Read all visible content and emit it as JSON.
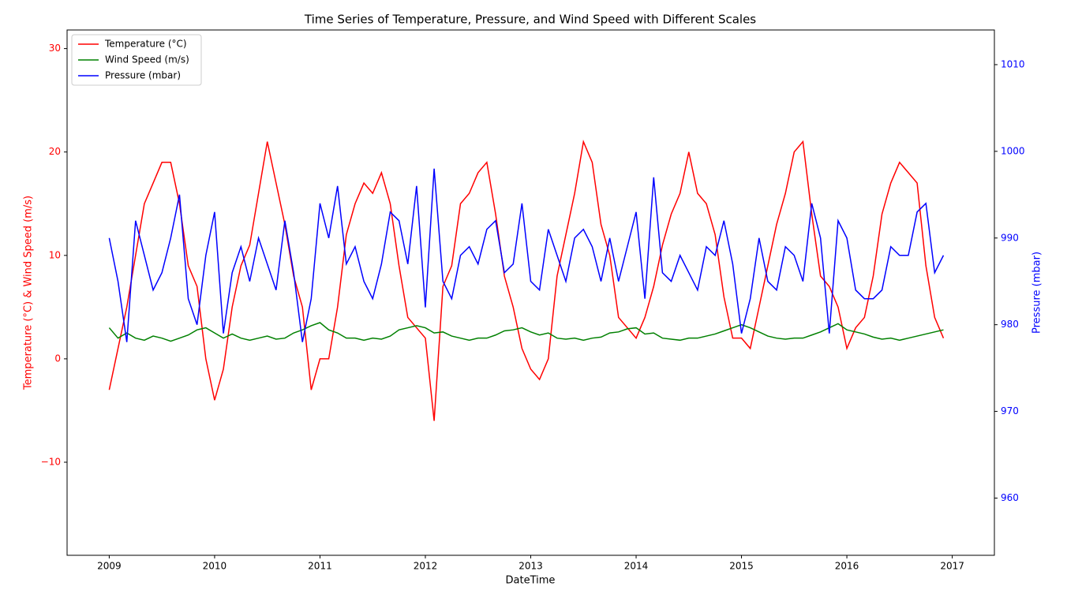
{
  "chart_data": {
    "type": "line",
    "title": "Time Series of Temperature, Pressure, and Wind Speed with Different Scales",
    "xlabel": "DateTime",
    "ylabel": "Temperature (°C) & Wind Speed (m/s)",
    "y2label": "Pressure (mbar)",
    "x": [
      2009,
      2009.0833,
      2009.1667,
      2009.25,
      2009.3333,
      2009.4167,
      2009.5,
      2009.5833,
      2009.6667,
      2009.75,
      2009.8333,
      2009.9167,
      2010,
      2010.0833,
      2010.1667,
      2010.25,
      2010.3333,
      2010.4167,
      2010.5,
      2010.5833,
      2010.6667,
      2010.75,
      2010.8333,
      2010.9167,
      2011,
      2011.0833,
      2011.1667,
      2011.25,
      2011.3333,
      2011.4167,
      2011.5,
      2011.5833,
      2011.6667,
      2011.75,
      2011.8333,
      2011.9167,
      2012,
      2012.0833,
      2012.1667,
      2012.25,
      2012.3333,
      2012.4167,
      2012.5,
      2012.5833,
      2012.6667,
      2012.75,
      2012.8333,
      2012.9167,
      2013,
      2013.0833,
      2013.1667,
      2013.25,
      2013.3333,
      2013.4167,
      2013.5,
      2013.5833,
      2013.6667,
      2013.75,
      2013.8333,
      2013.9167,
      2014,
      2014.0833,
      2014.1667,
      2014.25,
      2014.3333,
      2014.4167,
      2014.5,
      2014.5833,
      2014.6667,
      2014.75,
      2014.8333,
      2014.9167,
      2015,
      2015.0833,
      2015.1667,
      2015.25,
      2015.3333,
      2015.4167,
      2015.5,
      2015.5833,
      2015.6667,
      2015.75,
      2015.8333,
      2015.9167,
      2016,
      2016.0833,
      2016.1667,
      2016.25,
      2016.3333,
      2016.4167,
      2016.5,
      2016.5833,
      2016.6667,
      2016.75,
      2016.8333,
      2016.9167
    ],
    "series": [
      {
        "name": "Temperature (°C)",
        "color": "#ff0000",
        "axis": "y",
        "values": [
          -3,
          1,
          5,
          10,
          15,
          17,
          19,
          19,
          15,
          9,
          7,
          0,
          -4,
          -1,
          5,
          9,
          11,
          16,
          21,
          17,
          13,
          8,
          5,
          -3,
          0,
          0,
          5,
          12,
          15,
          17,
          16,
          18,
          15,
          9,
          4,
          3,
          2,
          -6,
          7,
          9,
          15,
          16,
          18,
          19,
          14,
          8,
          5,
          1,
          -1,
          -2,
          0,
          8,
          12,
          16,
          21,
          19,
          13,
          10,
          4,
          3,
          2,
          4,
          7,
          11,
          14,
          16,
          20,
          16,
          15,
          12,
          6,
          2,
          2,
          1,
          5,
          9,
          13,
          16,
          20,
          21,
          14,
          8,
          7,
          5,
          1,
          3,
          4,
          8,
          14,
          17,
          19,
          18,
          17,
          9,
          4,
          2
        ]
      },
      {
        "name": "Wind Speed (m/s)",
        "color": "#008000",
        "axis": "y",
        "values": [
          3,
          2,
          2.5,
          2,
          1.8,
          2.2,
          2,
          1.7,
          2,
          2.3,
          2.8,
          3,
          2.5,
          2,
          2.4,
          2,
          1.8,
          2,
          2.2,
          1.9,
          2,
          2.5,
          2.8,
          3.2,
          3.5,
          2.8,
          2.5,
          2,
          2,
          1.8,
          2,
          1.9,
          2.2,
          2.8,
          3,
          3.2,
          3,
          2.5,
          2.6,
          2.2,
          2,
          1.8,
          2,
          2,
          2.3,
          2.7,
          2.8,
          3,
          2.6,
          2.3,
          2.5,
          2,
          1.9,
          2,
          1.8,
          2,
          2.1,
          2.5,
          2.6,
          2.9,
          3,
          2.4,
          2.5,
          2,
          1.9,
          1.8,
          2,
          2,
          2.2,
          2.4,
          2.7,
          3,
          3.3,
          3,
          2.6,
          2.2,
          2,
          1.9,
          2,
          2,
          2.3,
          2.6,
          3,
          3.4,
          2.8,
          2.6,
          2.4,
          2.1,
          1.9,
          2,
          1.8,
          2,
          2.2,
          2.4,
          2.6,
          2.8
        ]
      },
      {
        "name": "Pressure (mbar)",
        "color": "#0000ff",
        "axis": "y2",
        "values": [
          990,
          985,
          978,
          992,
          988,
          984,
          986,
          990,
          995,
          983,
          980,
          988,
          993,
          979,
          986,
          989,
          985,
          990,
          987,
          984,
          992,
          986,
          978,
          983,
          994,
          990,
          996,
          987,
          989,
          985,
          983,
          987,
          993,
          992,
          987,
          996,
          982,
          998,
          985,
          983,
          988,
          989,
          987,
          991,
          992,
          986,
          987,
          994,
          985,
          984,
          991,
          988,
          985,
          990,
          991,
          989,
          985,
          990,
          985,
          989,
          993,
          983,
          997,
          986,
          985,
          988,
          986,
          984,
          989,
          988,
          992,
          987,
          979,
          983,
          990,
          985,
          984,
          989,
          988,
          985,
          994,
          990,
          979,
          992,
          990,
          984,
          983,
          983,
          984,
          989,
          988,
          988,
          993,
          994,
          986,
          988
        ]
      }
    ],
    "xlim": [
      2008.6,
      2017.4
    ],
    "xticks": [
      2009,
      2010,
      2011,
      2012,
      2013,
      2014,
      2015,
      2016,
      2017
    ],
    "ylim": [
      -19,
      31.8
    ],
    "yticks": [
      {
        "value": -10,
        "label": "−10"
      },
      0,
      10,
      20,
      30
    ],
    "y2lim": [
      953.4,
      1014
    ],
    "y2ticks": [
      960,
      970,
      980,
      990,
      1000,
      1010
    ],
    "legend": "upper left"
  }
}
